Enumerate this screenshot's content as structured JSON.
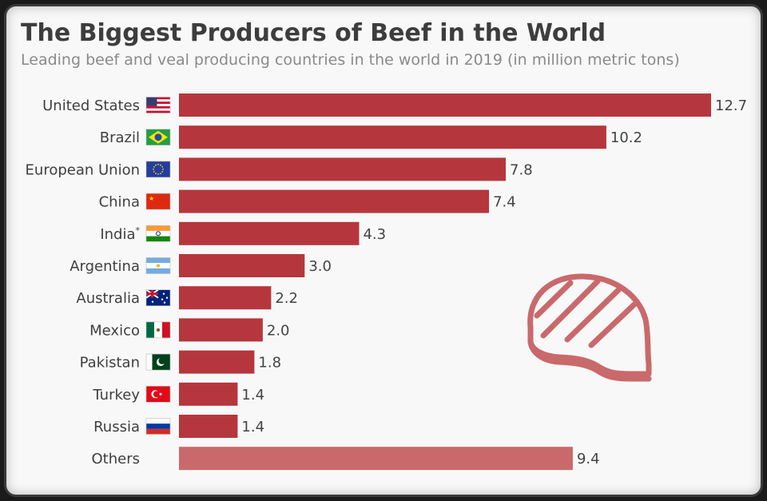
{
  "title": "The Biggest Producers of Beef in the World",
  "subtitle": "Leading beef and veal producing countries in the world in 2019 (in million metric tons)",
  "colors": {
    "bar": "#b5373d",
    "bar_others": "#c9696b",
    "icon": "#c9696b"
  },
  "decoration_icon": "steak-icon",
  "chart_data": {
    "type": "bar",
    "orientation": "horizontal",
    "title": "The Biggest Producers of Beef in the World",
    "subtitle": "Leading beef and veal producing countries in the world in 2019 (in million metric tons)",
    "categories": [
      "United States",
      "Brazil",
      "European Union",
      "China",
      "India",
      "Argentina",
      "Australia",
      "Mexico",
      "Pakistan",
      "Turkey",
      "Russia",
      "Others"
    ],
    "category_superscripts": [
      "",
      "",
      "",
      "",
      "*",
      "",
      "",
      "",
      "",
      "",
      "",
      ""
    ],
    "flag_icons": [
      "flag-us-icon",
      "flag-brazil-icon",
      "flag-eu-icon",
      "flag-china-icon",
      "flag-india-icon",
      "flag-argentina-icon",
      "flag-australia-icon",
      "flag-mexico-icon",
      "flag-pakistan-icon",
      "flag-turkey-icon",
      "flag-russia-icon",
      ""
    ],
    "values": [
      12.7,
      10.2,
      7.8,
      7.4,
      4.3,
      3.0,
      2.2,
      2.0,
      1.8,
      1.4,
      1.4,
      9.4
    ],
    "value_labels": [
      "12.7",
      "10.2",
      "7.8",
      "7.4",
      "4.3",
      "3.0",
      "2.2",
      "2.0",
      "1.8",
      "1.4",
      "1.4",
      "9.4"
    ],
    "xlim": [
      0,
      12.7
    ],
    "grid": false,
    "legend": "none"
  }
}
